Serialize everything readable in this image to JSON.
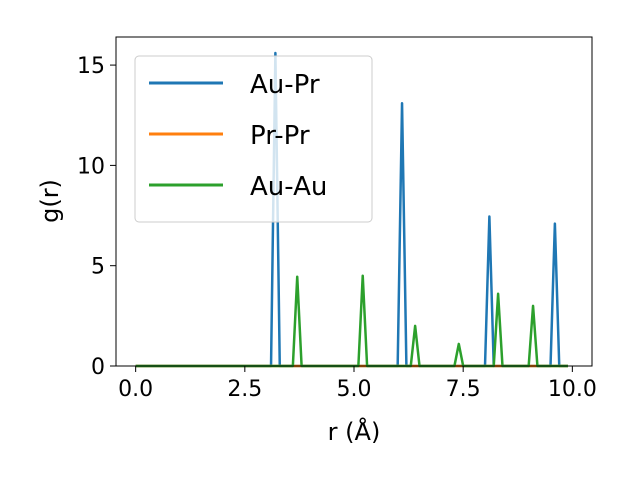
{
  "chart_data": {
    "type": "line",
    "xlabel": "r (Å)",
    "ylabel": "g(r)",
    "xlim": [
      -0.45,
      10.45
    ],
    "ylim": [
      0,
      16.4
    ],
    "xticks": [
      0.0,
      2.5,
      5.0,
      7.5,
      10.0
    ],
    "xtick_labels": [
      "0.0",
      "2.5",
      "5.0",
      "7.5",
      "10.0"
    ],
    "yticks": [
      0,
      5,
      10,
      15
    ],
    "ytick_labels": [
      "0",
      "5",
      "10",
      "15"
    ],
    "grid": false,
    "legend_position": "upper-left",
    "series": [
      {
        "name": "Au-Pr",
        "color": "#1f77b4",
        "x": [
          0.0,
          3.1,
          3.2,
          3.3,
          6.0,
          6.1,
          6.2,
          8.0,
          8.1,
          8.2,
          9.5,
          9.6,
          9.7,
          9.9
        ],
        "y": [
          0,
          0,
          15.6,
          0,
          0,
          13.1,
          0,
          0,
          7.45,
          0,
          0,
          7.1,
          0,
          0
        ]
      },
      {
        "name": "Pr-Pr",
        "color": "#ff7f0e",
        "x": [
          0.0,
          9.9
        ],
        "y": [
          0,
          0
        ]
      },
      {
        "name": "Au-Au",
        "color": "#2ca02c",
        "x": [
          0.0,
          3.6,
          3.7,
          3.8,
          5.1,
          5.2,
          5.3,
          6.3,
          6.4,
          6.5,
          7.3,
          7.4,
          7.5,
          8.2,
          8.3,
          8.4,
          9.0,
          9.1,
          9.2,
          9.9
        ],
        "y": [
          0,
          0,
          4.45,
          0,
          0,
          4.5,
          0,
          0,
          2.0,
          0,
          0,
          1.1,
          0,
          0,
          3.6,
          0,
          0,
          3.0,
          0,
          0
        ]
      }
    ]
  }
}
